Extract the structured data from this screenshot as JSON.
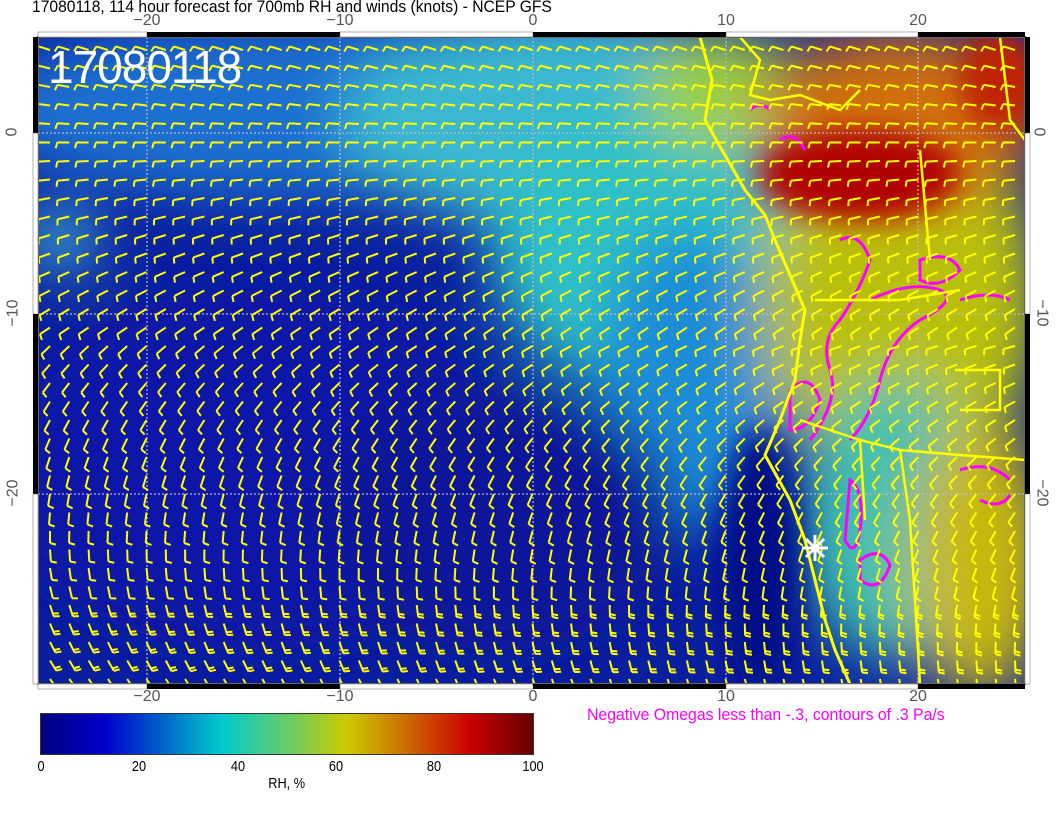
{
  "title": "17080118, 114 hour forecast for 700mb RH and winds (knots) - NCEP GFS",
  "stamp": "17080118",
  "map": {
    "lon_ticks": [
      "−20",
      "−10",
      "0",
      "10",
      "20"
    ],
    "lat_ticks": [
      "0",
      "−10",
      "−20"
    ],
    "colors": {
      "coastline": "#ffff00",
      "barbs": "#ffff00",
      "omega_contours": "#ff00ff",
      "marker": "#ffffff"
    },
    "marker_icon": "star-marker"
  },
  "colorbar": {
    "ticks": [
      "0",
      "20",
      "40",
      "60",
      "80",
      "100"
    ],
    "label": "RH, %"
  },
  "omega_note": "Negative Omegas less than -.3, contours of .3 Pa/s"
}
